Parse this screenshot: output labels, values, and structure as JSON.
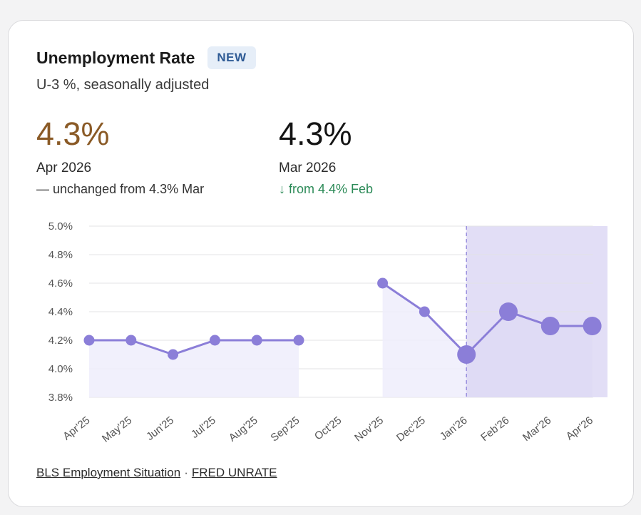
{
  "header": {
    "title": "Unemployment Rate",
    "badge": "NEW",
    "subtitle": "U-3 %, seasonally adjusted"
  },
  "kpis": [
    {
      "value": "4.3%",
      "period": "Apr 2026",
      "change": "— unchanged from 4.3% Mar",
      "color": "#8a5a26"
    },
    {
      "value": "4.3%",
      "period": "Mar 2026",
      "change": "↓ from 4.4% Feb",
      "color": "#2b8a57"
    }
  ],
  "chart_data": {
    "type": "line",
    "categories": [
      "Apr'25",
      "May'25",
      "Jun'25",
      "Jul'25",
      "Aug'25",
      "Sep'25",
      "Oct'25",
      "Nov'25",
      "Dec'25",
      "Jan'26",
      "Feb'26",
      "Mar'26",
      "Apr'26"
    ],
    "series": [
      {
        "values": [
          4.2,
          4.2,
          4.1,
          4.2,
          4.2,
          4.2,
          null,
          4.6,
          4.4,
          4.1,
          4.4,
          4.3,
          4.3
        ]
      }
    ],
    "ylim": [
      3.8,
      5.0
    ],
    "yticks": [
      "5.0%",
      "4.8%",
      "4.6%",
      "4.4%",
      "4.2%",
      "4.0%",
      "3.8%"
    ],
    "ytick_values": [
      5.0,
      4.8,
      4.6,
      4.4,
      4.2,
      4.0,
      3.8
    ],
    "highlight_from": "Jan'26",
    "emphasized_points": [
      "Jan'26",
      "Feb'26",
      "Mar'26",
      "Apr'26"
    ],
    "grid": true,
    "colors": {
      "line": "#8b7ed8",
      "area": "#efedfb",
      "highlight": "#e2def6",
      "grid": "#e3e3e6",
      "axis_text": "#555555"
    }
  },
  "footer": {
    "source1": "BLS Employment Situation",
    "separator": "·",
    "source2": "FRED UNRATE"
  }
}
